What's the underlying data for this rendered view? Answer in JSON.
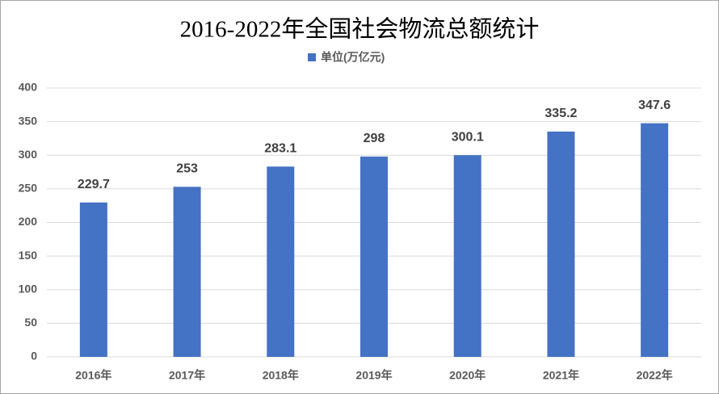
{
  "chart_data": {
    "type": "bar",
    "title": "2016-2022年全国社会物流总额统计",
    "categories": [
      "2016年",
      "2017年",
      "2018年",
      "2019年",
      "2020年",
      "2021年",
      "2022年"
    ],
    "series": [
      {
        "name": "单位(万亿元)",
        "color": "#4472c4",
        "values": [
          229.7,
          253,
          283.1,
          298,
          300.1,
          335.2,
          347.6
        ]
      }
    ],
    "ylim": [
      0,
      400
    ],
    "yticks": [
      0,
      50,
      100,
      150,
      200,
      250,
      300,
      350,
      400
    ],
    "grid": true
  }
}
